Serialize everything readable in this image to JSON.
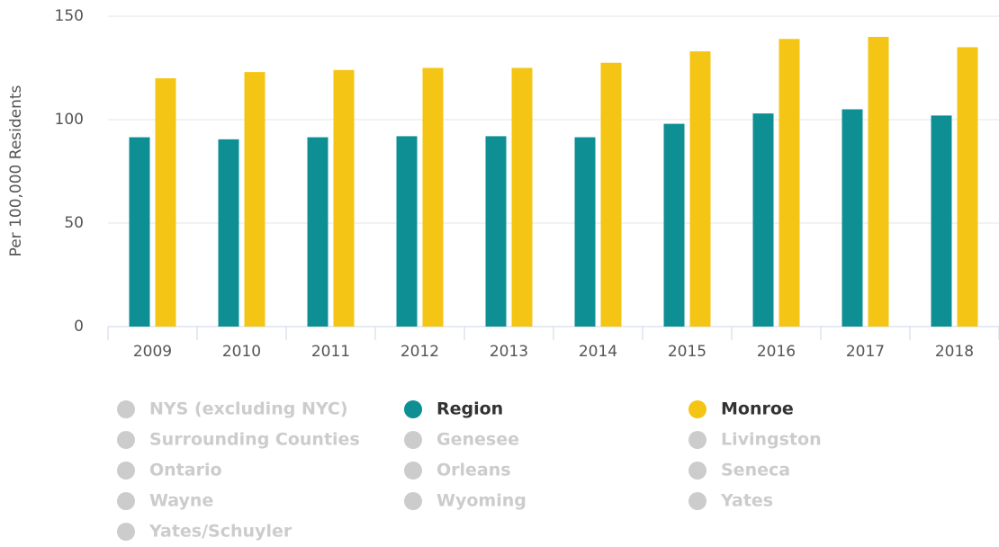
{
  "chart_data": {
    "type": "bar",
    "ylabel": "Per 100,000 Residents",
    "categories": [
      "2009",
      "2010",
      "2011",
      "2012",
      "2013",
      "2014",
      "2015",
      "2016",
      "2017",
      "2018"
    ],
    "ylim": [
      0,
      150
    ],
    "yticks": [
      0,
      50,
      100,
      150
    ],
    "grid": true,
    "series": [
      {
        "name": "NYS (excluding NYC)",
        "color": "#cccccc",
        "visible": false
      },
      {
        "name": "Region",
        "color": "#0e8f93",
        "visible": true,
        "values": [
          91.5,
          90.5,
          91.5,
          92,
          92,
          91.5,
          98,
          103,
          105,
          102
        ]
      },
      {
        "name": "Monroe",
        "color": "#f4c514",
        "visible": true,
        "values": [
          120,
          123,
          124,
          125,
          125,
          127.5,
          133,
          139,
          140,
          135
        ]
      },
      {
        "name": "Surrounding Counties",
        "color": "#cccccc",
        "visible": false
      },
      {
        "name": "Genesee",
        "color": "#cccccc",
        "visible": false
      },
      {
        "name": "Livingston",
        "color": "#cccccc",
        "visible": false
      },
      {
        "name": "Ontario",
        "color": "#cccccc",
        "visible": false
      },
      {
        "name": "Orleans",
        "color": "#cccccc",
        "visible": false
      },
      {
        "name": "Seneca",
        "color": "#cccccc",
        "visible": false
      },
      {
        "name": "Wayne",
        "color": "#cccccc",
        "visible": false
      },
      {
        "name": "Wyoming",
        "color": "#cccccc",
        "visible": false
      },
      {
        "name": "Yates",
        "color": "#cccccc",
        "visible": false
      },
      {
        "name": "Yates/Schuyler",
        "color": "#cccccc",
        "visible": false
      }
    ]
  }
}
